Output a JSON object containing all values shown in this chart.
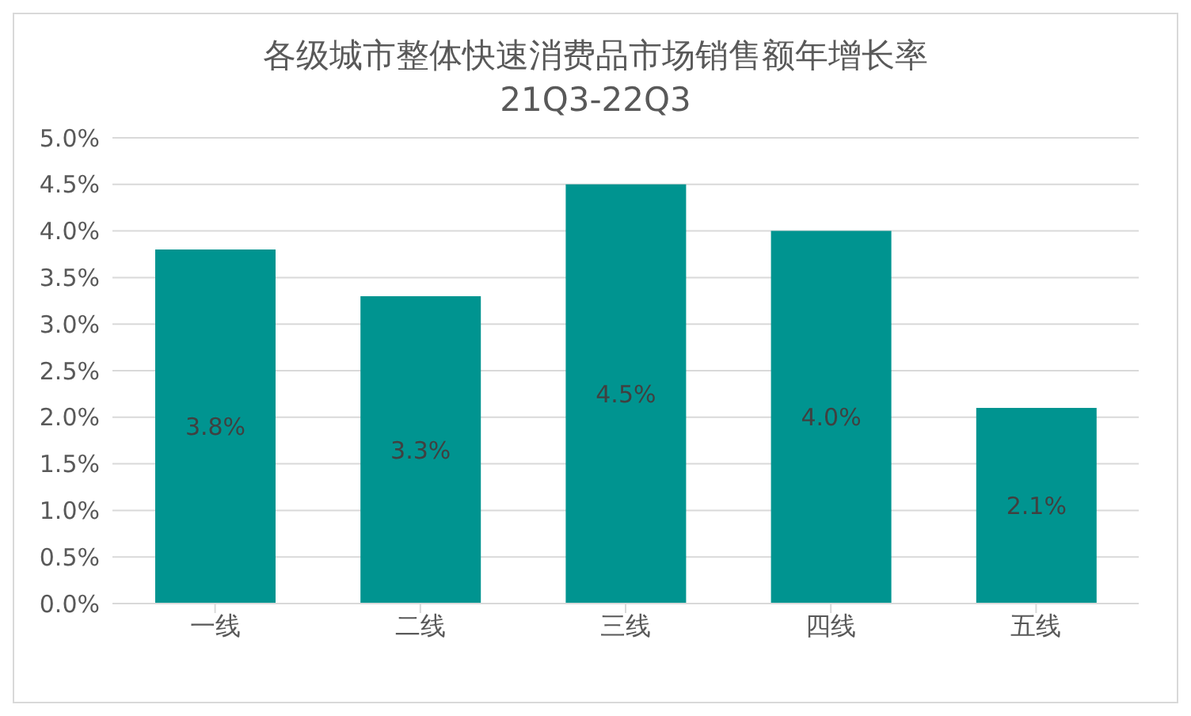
{
  "chart_data": {
    "type": "bar",
    "title": "各级城市整体快速消费品市场销售额年增长率",
    "subtitle": "21Q3-22Q3",
    "categories": [
      "一线",
      "二线",
      "三线",
      "四线",
      "五线"
    ],
    "values": [
      3.8,
      3.3,
      4.5,
      4.0,
      2.1
    ],
    "value_labels": [
      "3.8%",
      "3.3%",
      "4.5%",
      "4.0%",
      "2.1%"
    ],
    "color": "#009490",
    "ylim": [
      0,
      5
    ],
    "yticks": [
      {
        "value": 0,
        "label": "0.0%"
      },
      {
        "value": 0.5,
        "label": "0.5%"
      },
      {
        "value": 1,
        "label": "1.0%"
      },
      {
        "value": 1.5,
        "label": "1.5%"
      },
      {
        "value": 2,
        "label": "2.0%"
      },
      {
        "value": 2.5,
        "label": "2.5%"
      },
      {
        "value": 3,
        "label": "3.0%"
      },
      {
        "value": 3.5,
        "label": "3.5%"
      },
      {
        "value": 4,
        "label": "4.0%"
      },
      {
        "value": 4.5,
        "label": "4.5%"
      },
      {
        "value": 5,
        "label": "5.0%"
      }
    ],
    "grid": "y"
  }
}
